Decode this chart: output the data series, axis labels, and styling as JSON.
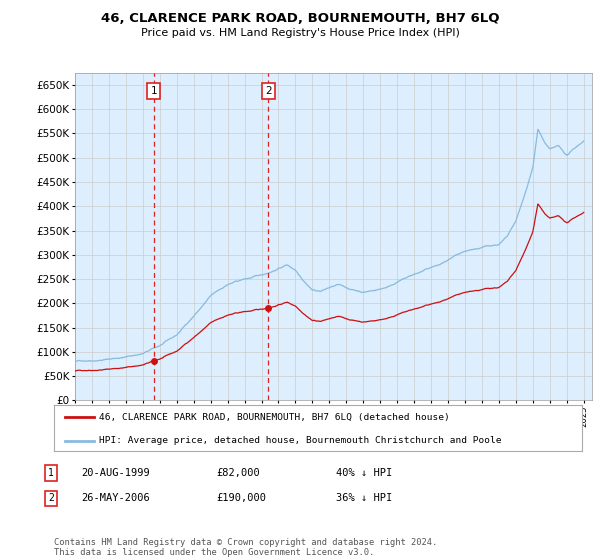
{
  "title": "46, CLARENCE PARK ROAD, BOURNEMOUTH, BH7 6LQ",
  "subtitle": "Price paid vs. HM Land Registry's House Price Index (HPI)",
  "ylim": [
    0,
    675000
  ],
  "yticks": [
    0,
    50000,
    100000,
    150000,
    200000,
    250000,
    300000,
    350000,
    400000,
    450000,
    500000,
    550000,
    600000,
    650000
  ],
  "background_color": "#ffffff",
  "plot_bg_color": "#ddeeff",
  "grid_color": "#cccccc",
  "sale1_price": 82000,
  "sale1_year": 1999.64,
  "sale2_price": 190000,
  "sale2_year": 2006.4,
  "hpi_color": "#88bbdd",
  "price_color": "#cc1111",
  "vline_color": "#dd2222",
  "legend_label_price": "46, CLARENCE PARK ROAD, BOURNEMOUTH, BH7 6LQ (detached house)",
  "legend_label_hpi": "HPI: Average price, detached house, Bournemouth Christchurch and Poole",
  "table_rows": [
    {
      "num": "1",
      "date": "20-AUG-1999",
      "price": "£82,000",
      "vs_hpi": "40% ↓ HPI"
    },
    {
      "num": "2",
      "date": "26-MAY-2006",
      "price": "£190,000",
      "vs_hpi": "36% ↓ HPI"
    }
  ],
  "footer": "Contains HM Land Registry data © Crown copyright and database right 2024.\nThis data is licensed under the Open Government Licence v3.0.",
  "x_start_year": 1995,
  "x_end_year": 2025
}
